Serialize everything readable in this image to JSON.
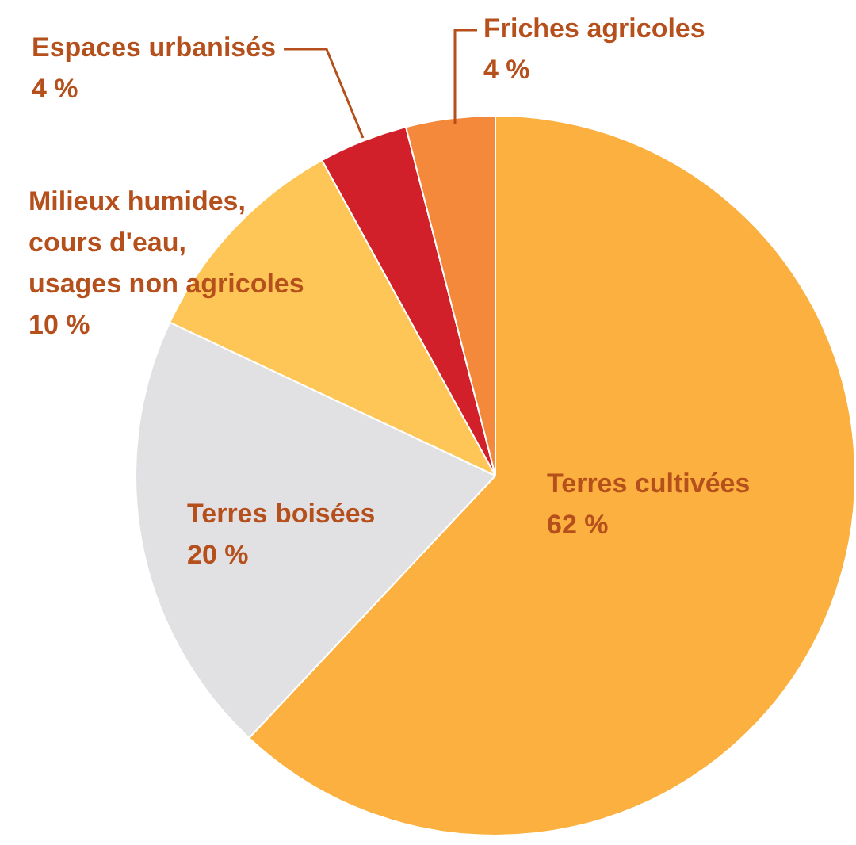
{
  "chart_data": {
    "type": "pie",
    "categories": [
      "Terres cultivées",
      "Terres boisées",
      "Milieux humides, cours d'eau, usages non agricoles",
      "Espaces urbanisés",
      "Friches agricoles"
    ],
    "values": [
      62,
      20,
      10,
      4,
      4
    ],
    "value_labels": [
      "62 %",
      "20 %",
      "10 %",
      "4 %",
      "4 %"
    ],
    "colors": [
      "#fbb040",
      "#e1e1e3",
      "#fec656",
      "#d2202a",
      "#f5893b"
    ],
    "legend": false
  }
}
